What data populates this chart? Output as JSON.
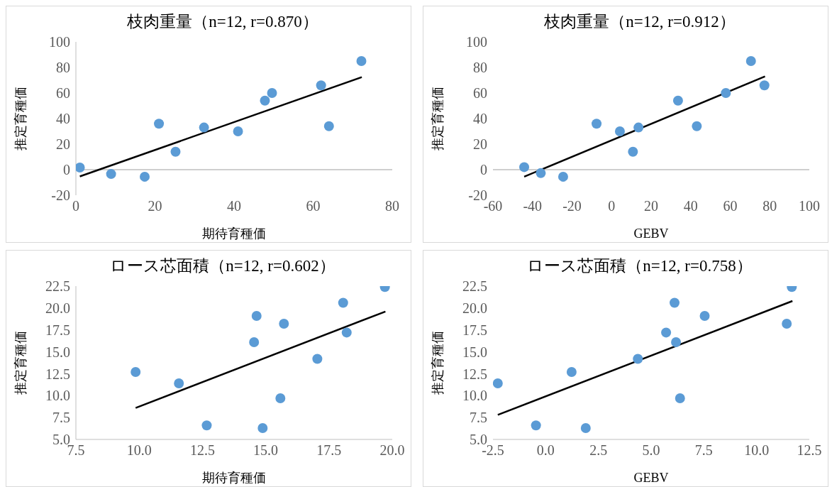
{
  "chart_data": [
    {
      "type": "scatter",
      "title": "枝肉重量（n=12, r=0.870）",
      "xlabel": "期待育種価",
      "ylabel": "推定育種価",
      "xlim": [
        0,
        80
      ],
      "xticks": [
        0,
        20,
        40,
        60,
        80
      ],
      "ylim": [
        -20,
        100
      ],
      "yticks": [
        -20,
        0,
        20,
        40,
        60,
        80,
        100
      ],
      "grid": false,
      "legend": false,
      "marker": "circle",
      "series": [
        {
          "color": "#5b9bd5",
          "x": [
            1.0,
            8.9,
            17.4,
            21.0,
            25.2,
            32.4,
            41.0,
            47.8,
            49.6,
            62.0,
            64.0,
            72.2
          ],
          "values": [
            1.7,
            -3.4,
            -5.5,
            36,
            14,
            33,
            30,
            54,
            60,
            66,
            34,
            85
          ]
        },
        {
          "type": "line",
          "color": "#000000",
          "line_style": "solid",
          "marker": "none",
          "x": [
            1.0,
            72.3
          ],
          "values": [
            -5.3,
            72.4
          ]
        }
      ]
    },
    {
      "type": "scatter",
      "title": "枝肉重量（n=12, r=0.912）",
      "xlabel": "GEBV",
      "ylabel": "推定育種価",
      "xlim": [
        -60,
        100
      ],
      "xticks": [
        -60,
        -40,
        -20,
        0,
        20,
        40,
        60,
        80,
        100
      ],
      "ylim": [
        -20,
        100
      ],
      "yticks": [
        -20,
        0,
        20,
        40,
        60,
        80,
        100
      ],
      "grid": false,
      "legend": false,
      "marker": "circle",
      "series": [
        {
          "color": "#5b9bd5",
          "x": [
            -44.2,
            -35.8,
            -24.5,
            -7.6,
            4.2,
            10.8,
            13.6,
            33.6,
            43.1,
            57.8,
            70.5,
            77.3
          ],
          "values": [
            2,
            -2.7,
            -5.5,
            36,
            30,
            14,
            33,
            54,
            34,
            60,
            85,
            66
          ]
        },
        {
          "type": "line",
          "color": "#000000",
          "line_style": "solid",
          "marker": "none",
          "x": [
            -44.2,
            77.6
          ],
          "values": [
            -5.5,
            73
          ]
        }
      ]
    },
    {
      "type": "scatter",
      "title": "ロース芯面積（n=12, r=0.602）",
      "xlabel": "期待育種価",
      "ylabel": "推定育種価",
      "xlim": [
        7.5,
        20
      ],
      "xticks": [
        {
          "value": 7.5,
          "label": "7.5"
        },
        {
          "value": 10,
          "label": "10.0"
        },
        {
          "value": 12.5,
          "label": "12.5"
        },
        {
          "value": 15,
          "label": "15.0"
        },
        {
          "value": 17.5,
          "label": "17.5"
        },
        {
          "value": 20,
          "label": "20.0"
        }
      ],
      "ylim": [
        5,
        22.5
      ],
      "yticks": [
        {
          "value": 5,
          "label": "5.0"
        },
        {
          "value": 7.5,
          "label": "7.5"
        },
        {
          "value": 10,
          "label": "10.0"
        },
        {
          "value": 12.5,
          "label": "12.5"
        },
        {
          "value": 15,
          "label": "15.0"
        },
        {
          "value": 17.5,
          "label": "17.5"
        },
        {
          "value": 20,
          "label": "20.0"
        },
        {
          "value": 22.5,
          "label": "22.5"
        }
      ],
      "grid": false,
      "legend": false,
      "marker": "circle",
      "series": [
        {
          "color": "#5b9bd5",
          "x": [
            9.86,
            11.57,
            12.67,
            14.54,
            14.64,
            14.88,
            15.58,
            15.72,
            17.04,
            18.06,
            18.2,
            19.71
          ],
          "values": [
            12.7,
            11.4,
            6.6,
            16.1,
            19.1,
            6.3,
            9.7,
            18.2,
            14.2,
            20.6,
            17.2,
            22.4
          ]
        },
        {
          "type": "line",
          "color": "#000000",
          "line_style": "solid",
          "marker": "none",
          "x": [
            9.86,
            19.73
          ],
          "values": [
            8.6,
            19.6
          ]
        }
      ]
    },
    {
      "type": "scatter",
      "title": "ロース芯面積（n=12, r=0.758）",
      "xlabel": "GEBV",
      "ylabel": "推定育種価",
      "xlim": [
        -2.5,
        12.5
      ],
      "xticks": [
        {
          "value": -2.5,
          "label": "-2.5"
        },
        {
          "value": 0,
          "label": "0.0"
        },
        {
          "value": 2.5,
          "label": "2.5"
        },
        {
          "value": 5,
          "label": "5.0"
        },
        {
          "value": 7.5,
          "label": "7.5"
        },
        {
          "value": 10,
          "label": "10.0"
        },
        {
          "value": 12.5,
          "label": "12.5"
        }
      ],
      "ylim": [
        5,
        22.5
      ],
      "yticks": [
        {
          "value": 5,
          "label": "5.0"
        },
        {
          "value": 7.5,
          "label": "7.5"
        },
        {
          "value": 10,
          "label": "10.0"
        },
        {
          "value": 12.5,
          "label": "12.5"
        },
        {
          "value": 15,
          "label": "15.0"
        },
        {
          "value": 17.5,
          "label": "17.5"
        },
        {
          "value": 20,
          "label": "20.0"
        },
        {
          "value": 22.5,
          "label": "22.5"
        }
      ],
      "grid": false,
      "legend": false,
      "marker": "circle",
      "series": [
        {
          "color": "#5b9bd5",
          "x": [
            -2.27,
            -0.46,
            1.23,
            1.9,
            4.37,
            5.71,
            6.11,
            6.18,
            6.37,
            7.54,
            11.43,
            11.67
          ],
          "values": [
            11.4,
            6.6,
            12.7,
            6.3,
            14.2,
            17.2,
            20.6,
            16.1,
            9.7,
            19.1,
            18.2,
            22.4
          ]
        },
        {
          "type": "line",
          "color": "#000000",
          "line_style": "solid",
          "marker": "none",
          "x": [
            -2.27,
            11.7
          ],
          "values": [
            7.8,
            20.8
          ]
        }
      ]
    }
  ]
}
